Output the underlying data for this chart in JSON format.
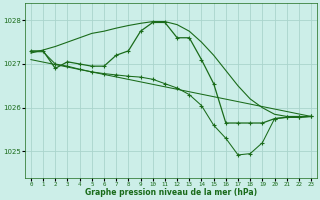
{
  "background_color": "#cceee8",
  "grid_color": "#aad4cc",
  "line_color": "#1a6b1a",
  "xlabel": "Graphe pression niveau de la mer (hPa)",
  "xlim": [
    -0.5,
    23.5
  ],
  "ylim": [
    1024.4,
    1028.4
  ],
  "yticks": [
    1025,
    1026,
    1027,
    1028
  ],
  "xticks": [
    0,
    1,
    2,
    3,
    4,
    5,
    6,
    7,
    8,
    9,
    10,
    11,
    12,
    13,
    14,
    15,
    16,
    17,
    18,
    19,
    20,
    21,
    22,
    23
  ],
  "series": [
    {
      "x": [
        0,
        1,
        2,
        3,
        4,
        5,
        6,
        7,
        8,
        9,
        10,
        11,
        12,
        13,
        14,
        15,
        16,
        17,
        18,
        19,
        20,
        21,
        22,
        23
      ],
      "y": [
        1027.25,
        1027.32,
        1027.4,
        1027.5,
        1027.6,
        1027.7,
        1027.75,
        1027.82,
        1027.88,
        1027.93,
        1027.97,
        1027.97,
        1027.9,
        1027.75,
        1027.5,
        1027.2,
        1026.85,
        1026.5,
        1026.2,
        1026.0,
        1025.85,
        1025.8,
        1025.8,
        1025.8
      ],
      "markers": false,
      "linewidth": 0.8
    },
    {
      "x": [
        0,
        1,
        2,
        3,
        4,
        5,
        6,
        7,
        8,
        9,
        10,
        11,
        12,
        13,
        14,
        15,
        16,
        17,
        18,
        19,
        20,
        21,
        22,
        23
      ],
      "y": [
        1027.3,
        1027.3,
        1026.9,
        1027.05,
        1027.0,
        1026.95,
        1026.95,
        1027.2,
        1027.3,
        1027.75,
        1027.95,
        1027.95,
        1027.6,
        1027.6,
        1027.1,
        1026.55,
        1025.65,
        1025.65,
        1025.65,
        1025.65,
        1025.75,
        1025.78,
        1025.78,
        1025.8
      ],
      "markers": true,
      "linewidth": 0.9
    },
    {
      "x": [
        0,
        23
      ],
      "y": [
        1027.1,
        1025.8
      ],
      "markers": false,
      "linewidth": 0.75
    },
    {
      "x": [
        0,
        1,
        2,
        3,
        4,
        5,
        6,
        7,
        8,
        9,
        10,
        11,
        12,
        13,
        14,
        15,
        16,
        17,
        18,
        19,
        20,
        21,
        22,
        23
      ],
      "y": [
        1027.28,
        1027.28,
        1027.0,
        1026.95,
        1026.88,
        1026.82,
        1026.78,
        1026.75,
        1026.72,
        1026.7,
        1026.65,
        1026.55,
        1026.45,
        1026.3,
        1026.05,
        1025.6,
        1025.3,
        1024.92,
        1024.95,
        1025.2,
        1025.75,
        1025.78,
        1025.78,
        1025.8
      ],
      "markers": false,
      "linewidth": 0.75
    },
    {
      "x": [
        2,
        3,
        4,
        5,
        6,
        7,
        8,
        9,
        10,
        11,
        12,
        13,
        14,
        15,
        16,
        17,
        18,
        19,
        20,
        21,
        22,
        23
      ],
      "y": [
        1027.0,
        1026.95,
        1026.88,
        1026.82,
        1026.78,
        1026.75,
        1026.72,
        1026.7,
        1026.65,
        1026.55,
        1026.45,
        1026.3,
        1026.05,
        1025.6,
        1025.3,
        1024.92,
        1024.95,
        1025.2,
        1025.75,
        1025.78,
        1025.78,
        1025.8
      ],
      "markers": true,
      "linewidth": 0.0
    }
  ]
}
